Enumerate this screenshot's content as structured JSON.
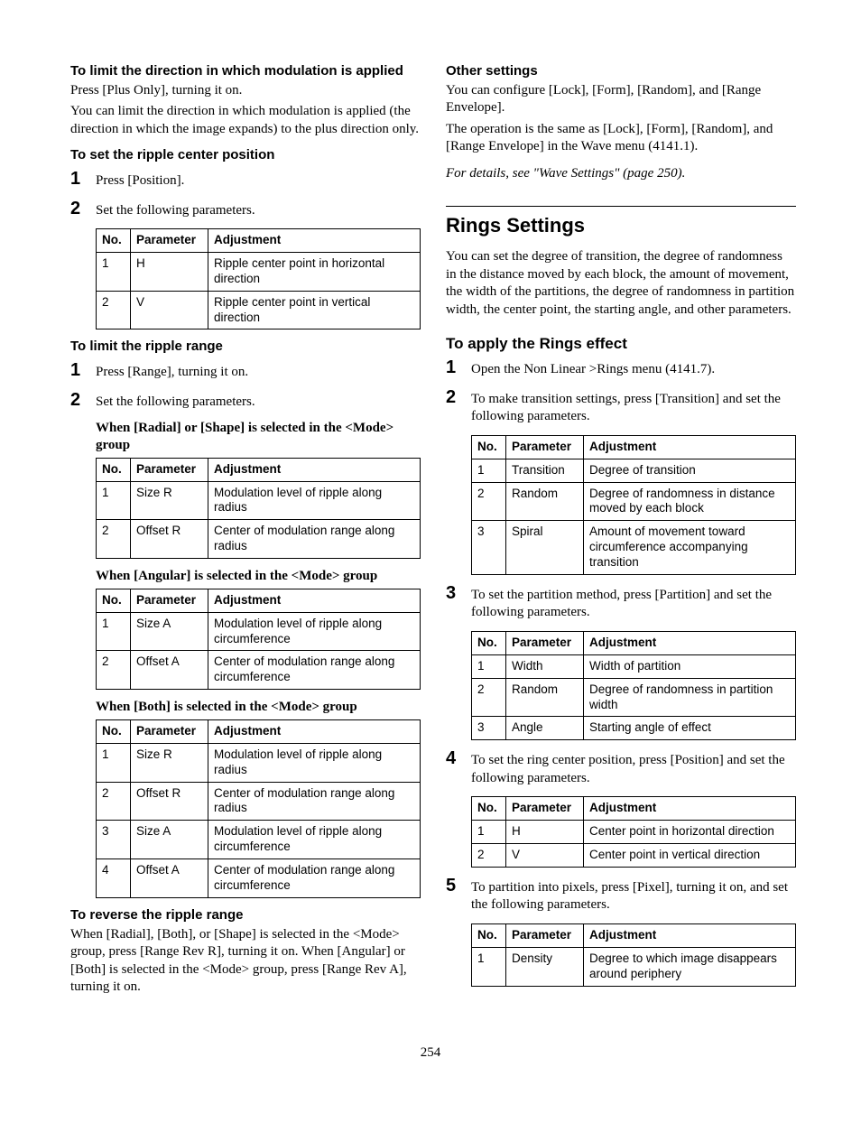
{
  "pageNumber": "254",
  "table_headers": {
    "no": "No.",
    "param": "Parameter",
    "adj": "Adjustment"
  },
  "left": {
    "limitDir": {
      "heading": "To limit the direction in which modulation is applied",
      "p1": "Press [Plus Only], turning it on.",
      "p2": "You can limit the direction in which modulation is applied (the direction in which the image expands) to the plus direction only."
    },
    "centerPos": {
      "heading": "To set the ripple center position",
      "step1": "Press [Position].",
      "step2": "Set the following parameters.",
      "table": {
        "rows": [
          {
            "no": "1",
            "param": "H",
            "adj": "Ripple center point in horizontal direction"
          },
          {
            "no": "2",
            "param": "V",
            "adj": "Ripple center point in vertical direction"
          }
        ]
      }
    },
    "limitRange": {
      "heading": "To limit the ripple range",
      "step1": "Press [Range], turning it on.",
      "step2": "Set the following parameters.",
      "cap_radial": "When [Radial] or [Shape] is selected in the <Mode> group",
      "table_radial": {
        "rows": [
          {
            "no": "1",
            "param": "Size R",
            "adj": "Modulation level of ripple along radius"
          },
          {
            "no": "2",
            "param": "Offset R",
            "adj": "Center of modulation range along radius"
          }
        ]
      },
      "cap_angular": "When [Angular] is selected in the <Mode> group",
      "table_angular": {
        "rows": [
          {
            "no": "1",
            "param": "Size A",
            "adj": "Modulation level of ripple along circumference"
          },
          {
            "no": "2",
            "param": "Offset A",
            "adj": "Center of modulation range along circumference"
          }
        ]
      },
      "cap_both": "When [Both] is selected in the <Mode> group",
      "table_both": {
        "rows": [
          {
            "no": "1",
            "param": "Size R",
            "adj": "Modulation level of ripple along radius"
          },
          {
            "no": "2",
            "param": "Offset R",
            "adj": "Center of modulation range along radius"
          },
          {
            "no": "3",
            "param": "Size A",
            "adj": "Modulation level of ripple along circumference"
          },
          {
            "no": "4",
            "param": "Offset A",
            "adj": "Center of modulation range along circumference"
          }
        ]
      }
    },
    "reverse": {
      "heading": "To reverse the ripple range",
      "p": "When [Radial], [Both], or [Shape] is selected in the <Mode> group, press [Range Rev R], turning it on. When [Angular] or [Both] is selected in the <Mode> group, press [Range Rev A], turning it on."
    }
  },
  "right": {
    "other": {
      "heading": "Other settings",
      "p1": "You can configure [Lock], [Form], [Random], and [Range Envelope].",
      "p2": "The operation is the same as [Lock], [Form], [Random], and [Range Envelope] in the Wave menu (4141.1).",
      "ref": "For details, see \"Wave Settings\" (page 250)."
    },
    "rings": {
      "title": "Rings Settings",
      "intro": "You can set the degree of transition, the degree of randomness in the distance moved by each block, the amount of movement, the width of the partitions, the degree of randomness in partition width, the center point, the starting angle, and other parameters.",
      "apply_heading": "To apply the Rings effect",
      "step1": "Open the Non Linear >Rings menu (4141.7).",
      "step2": "To make transition settings, press [Transition] and set the following parameters.",
      "table2": {
        "rows": [
          {
            "no": "1",
            "param": "Transition",
            "adj": "Degree of transition"
          },
          {
            "no": "2",
            "param": "Random",
            "adj": "Degree of randomness in distance moved by each block"
          },
          {
            "no": "3",
            "param": "Spiral",
            "adj": "Amount of movement toward circumference accompanying transition"
          }
        ]
      },
      "step3": "To set the partition method, press [Partition] and set the following parameters.",
      "table3": {
        "rows": [
          {
            "no": "1",
            "param": "Width",
            "adj": "Width of partition"
          },
          {
            "no": "2",
            "param": "Random",
            "adj": "Degree of randomness in partition width"
          },
          {
            "no": "3",
            "param": "Angle",
            "adj": "Starting angle of effect"
          }
        ]
      },
      "step4": "To set the ring center position, press [Position] and set the following parameters.",
      "table4": {
        "rows": [
          {
            "no": "1",
            "param": "H",
            "adj": "Center point in horizontal direction"
          },
          {
            "no": "2",
            "param": "V",
            "adj": "Center point in vertical direction"
          }
        ]
      },
      "step5": "To partition into pixels, press [Pixel], turning it on, and set the following parameters.",
      "table5": {
        "rows": [
          {
            "no": "1",
            "param": "Density",
            "adj": "Degree to which image disappears around periphery"
          }
        ]
      }
    }
  }
}
